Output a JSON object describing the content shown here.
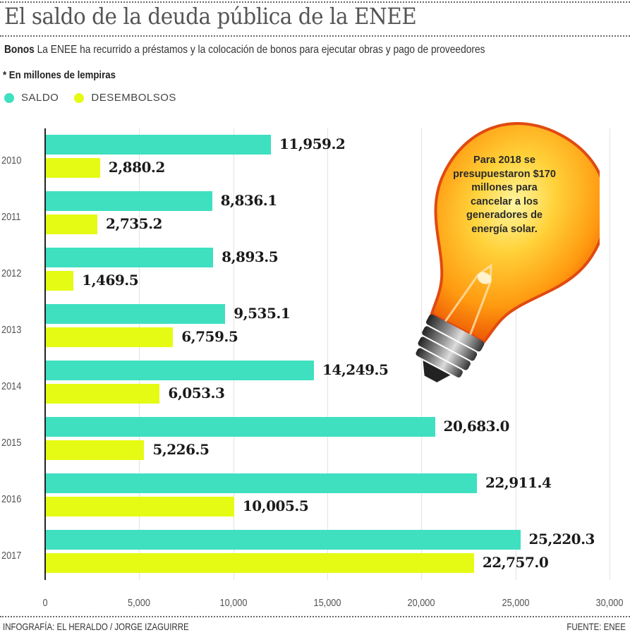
{
  "header": {
    "title": "El saldo de la deuda pública de la ENEE",
    "subtitle_bold": "Bonos",
    "subtitle_text": "La ENEE ha recurrido a préstamos y la colocación de bonos para ejecutar obras y pago de proveedores",
    "unit_note": "* En millones de lempiras"
  },
  "legend": [
    {
      "label": "SALDO",
      "color": "#3ee0c0"
    },
    {
      "label": "DESEMBOLSOS",
      "color": "#e5fb14"
    }
  ],
  "callout": {
    "icon": "lightbulb-icon",
    "text_lines": [
      "Para 2018 se",
      "presupuestaron $170",
      "millones para",
      "cancelar a los",
      "generadores de",
      "energía solar."
    ]
  },
  "footer": {
    "credit": "INFOGRAFÍA: EL HERALDO / JORGE IZAGUIRRE",
    "source": "FUENTE: ENEE"
  },
  "chart_data": {
    "type": "bar",
    "orientation": "horizontal",
    "title": "El saldo de la deuda pública de la ENEE",
    "subtitle": "Bonos La ENEE ha recurrido a préstamos y la colocación de bonos para ejecutar obras y pago de proveedores",
    "xlabel": "",
    "ylabel": "",
    "unit": "En millones de lempiras",
    "categories": [
      "2010",
      "2011",
      "2012",
      "2013",
      "2014",
      "2015",
      "2016",
      "2017"
    ],
    "series": [
      {
        "name": "SALDO",
        "color": "#3ee0c0",
        "values": [
          11959.2,
          8836.1,
          8893.5,
          9535.1,
          14249.5,
          20683.0,
          22911.4,
          25220.3
        ],
        "labels": [
          "11,959.2",
          "8,836.1",
          "8,893.5",
          "9,535.1",
          "14,249.5",
          "20,683.0",
          "22,911.4",
          "25,220.3"
        ]
      },
      {
        "name": "DESEMBOLSOS",
        "color": "#e5fb14",
        "values": [
          2880.2,
          2735.2,
          1469.5,
          6759.5,
          6053.3,
          5226.5,
          10005.5,
          22757.0
        ],
        "labels": [
          "2,880.2",
          "2,735.2",
          "1,469.5",
          "6,759.5",
          "6,053.3",
          "5,226.5",
          "10,005.5",
          "22,757.0"
        ]
      }
    ],
    "xlim": [
      0,
      30000
    ],
    "x_ticks": [
      "0",
      "5,000",
      "10,000",
      "15,000",
      "20,000",
      "25,000",
      "30,000"
    ],
    "grid": true,
    "legend_position": "top-left",
    "annotation": "Para 2018 se presupuestaron $170 millones para cancelar a los generadores de energía solar."
  }
}
